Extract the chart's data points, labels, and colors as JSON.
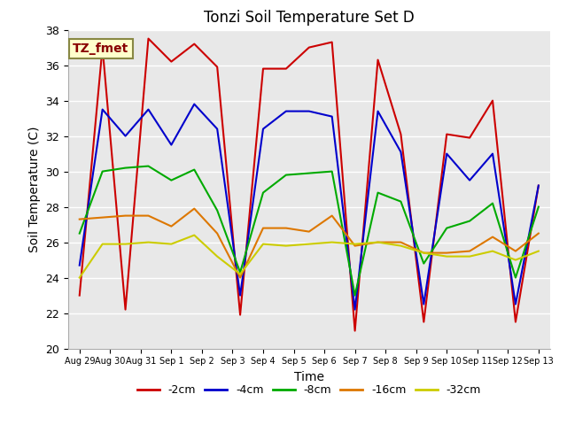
{
  "title": "Tonzi Soil Temperature Set D",
  "xlabel": "Time",
  "ylabel": "Soil Temperature (C)",
  "ylim": [
    20,
    38
  ],
  "annotation": "TZ_fmet",
  "x_labels": [
    "Aug 29",
    "Aug 30",
    "Aug 31",
    "Sep 1",
    "Sep 2",
    "Sep 3",
    "Sep 4",
    "Sep 5",
    "Sep 6",
    "Sep 7",
    "Sep 8",
    "Sep 9",
    "Sep 10",
    "Sep 11",
    "Sep 12",
    "Sep 13"
  ],
  "series": {
    "-2cm": {
      "color": "#cc0000",
      "data": [
        23.0,
        37.0,
        22.2,
        37.5,
        36.2,
        37.2,
        35.9,
        21.9,
        35.8,
        35.8,
        37.0,
        37.3,
        21.0,
        36.3,
        32.1,
        21.5,
        32.1,
        31.9,
        34.0,
        21.5,
        29.2
      ]
    },
    "-4cm": {
      "color": "#0000cc",
      "data": [
        24.7,
        33.5,
        32.0,
        33.5,
        31.5,
        33.8,
        32.4,
        23.0,
        32.4,
        33.4,
        33.4,
        33.1,
        22.2,
        33.4,
        31.1,
        22.5,
        31.0,
        29.5,
        31.0,
        22.5,
        29.2
      ]
    },
    "-8cm": {
      "color": "#00aa00",
      "data": [
        26.5,
        30.0,
        30.2,
        30.3,
        29.5,
        30.1,
        27.8,
        24.3,
        28.8,
        29.8,
        29.9,
        30.0,
        23.0,
        28.8,
        28.3,
        24.8,
        26.8,
        27.2,
        28.2,
        24.0,
        28.0
      ]
    },
    "-16cm": {
      "color": "#dd7700",
      "data": [
        27.3,
        27.4,
        27.5,
        27.5,
        26.9,
        27.9,
        26.5,
        24.0,
        26.8,
        26.8,
        26.6,
        27.5,
        25.8,
        26.0,
        26.0,
        25.4,
        25.4,
        25.5,
        26.3,
        25.5,
        26.5
      ]
    },
    "-32cm": {
      "color": "#cccc00",
      "data": [
        24.0,
        25.9,
        25.9,
        26.0,
        25.9,
        26.4,
        25.2,
        24.2,
        25.9,
        25.8,
        25.9,
        26.0,
        25.9,
        26.0,
        25.8,
        25.4,
        25.2,
        25.2,
        25.5,
        25.0,
        25.5
      ]
    }
  },
  "n_points": 21,
  "legend_entries": [
    "-2cm",
    "-4cm",
    "-8cm",
    "-16cm",
    "-32cm"
  ],
  "legend_colors": [
    "#cc0000",
    "#0000cc",
    "#00aa00",
    "#dd7700",
    "#cccc00"
  ],
  "figsize": [
    6.4,
    4.8
  ],
  "dpi": 100
}
